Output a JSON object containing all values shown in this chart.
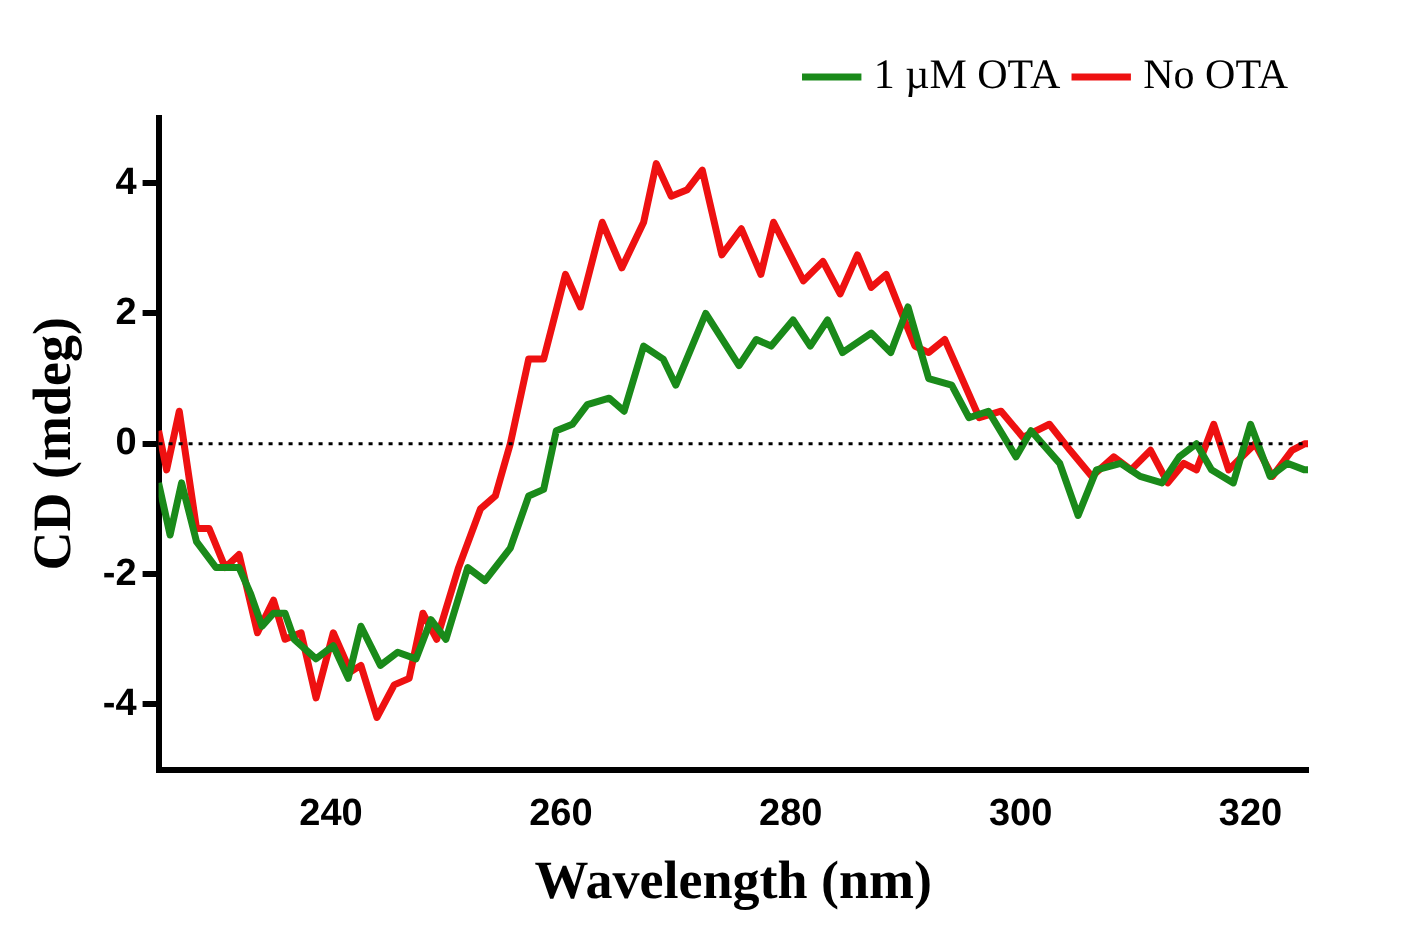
{
  "chart_data": {
    "type": "line",
    "xlabel": "Wavelength (nm)",
    "ylabel": "CD (mdeg)",
    "xlim": [
      225,
      325
    ],
    "xticks": [
      240,
      260,
      280,
      300,
      320
    ],
    "ylim": [
      -5,
      5
    ],
    "yticks": [
      -4,
      -2,
      0,
      2,
      4
    ],
    "grid": false,
    "legend": "top right",
    "marker": "none",
    "line_style": "solid",
    "ref_lines": [
      {
        "axis": "y",
        "value": 0,
        "line_style": "dotted",
        "color": "#000000"
      }
    ],
    "series": [
      {
        "name": "1 µM OTA",
        "color": "#1a8a1a",
        "x": [
          225,
          226,
          227,
          228.3,
          230,
          232,
          233,
          234,
          235,
          236,
          236.8,
          238.7,
          240.2,
          241.5,
          242.6,
          244.3,
          245.8,
          247.4,
          248.7,
          250,
          251.9,
          253.4,
          255.6,
          257.2,
          258.5,
          259.6,
          261,
          262.3,
          264.2,
          265.5,
          267.2,
          268.9,
          270,
          272.6,
          275.5,
          277,
          278.3,
          280.2,
          281.7,
          283.2,
          284.5,
          287,
          288.7,
          290.2,
          292,
          294,
          295.5,
          297.2,
          299.6,
          300.9,
          303.4,
          305,
          306.6,
          308.7,
          310.4,
          312.3,
          313.8,
          315.3,
          316.6,
          318.5,
          320,
          321.7,
          323.2,
          324.7,
          325
        ],
        "values": [
          -0.6,
          -1.4,
          -0.6,
          -1.5,
          -1.9,
          -1.9,
          -2.3,
          -2.8,
          -2.6,
          -2.6,
          -3,
          -3.3,
          -3.1,
          -3.6,
          -2.8,
          -3.4,
          -3.2,
          -3.3,
          -2.7,
          -3,
          -1.9,
          -2.1,
          -1.6,
          -0.8,
          -0.7,
          0.2,
          0.3,
          0.6,
          0.7,
          0.5,
          1.5,
          1.3,
          0.9,
          2,
          1.2,
          1.6,
          1.5,
          1.9,
          1.5,
          1.9,
          1.4,
          1.7,
          1.4,
          2.1,
          1,
          0.9,
          0.4,
          0.5,
          -0.2,
          0.2,
          -0.3,
          -1.1,
          -0.4,
          -0.3,
          -0.5,
          -0.6,
          -0.2,
          0,
          -0.4,
          -0.6,
          0.3,
          -0.5,
          -0.3,
          -0.4,
          -0.4
        ]
      },
      {
        "name": "No OTA",
        "color": "#ee1111",
        "x": [
          225,
          225.7,
          226.8,
          228.3,
          229.4,
          230.8,
          232,
          233.6,
          235,
          236,
          237.4,
          238.7,
          240.2,
          241.7,
          242.6,
          244,
          245.5,
          246.8,
          248,
          249.2,
          251.1,
          253,
          254.3,
          255.6,
          257.2,
          258.5,
          260.4,
          261.7,
          263.6,
          265.3,
          267.2,
          268.3,
          269.6,
          271,
          272.3,
          274,
          275.7,
          277.4,
          278.5,
          281.1,
          282.8,
          284.3,
          285.8,
          287,
          288.3,
          289.2,
          290.8,
          292,
          293.4,
          294.9,
          296.4,
          298.3,
          300.2,
          302.5,
          304.3,
          306.2,
          308.1,
          309.6,
          311.3,
          312.8,
          314.2,
          315.3,
          316.8,
          318.1,
          320.4,
          321.9,
          323.6,
          324.7,
          325
        ],
        "values": [
          0.2,
          -0.4,
          0.5,
          -1.3,
          -1.3,
          -1.9,
          -1.7,
          -2.9,
          -2.4,
          -3,
          -2.9,
          -3.9,
          -2.9,
          -3.5,
          -3.4,
          -4.2,
          -3.7,
          -3.6,
          -2.6,
          -3,
          -1.9,
          -1,
          -0.8,
          0,
          1.3,
          1.3,
          2.6,
          2.1,
          3.4,
          2.7,
          3.4,
          4.3,
          3.8,
          3.9,
          4.2,
          2.9,
          3.3,
          2.6,
          3.4,
          2.5,
          2.8,
          2.3,
          2.9,
          2.4,
          2.6,
          2.2,
          1.5,
          1.4,
          1.6,
          1,
          0.4,
          0.5,
          0.1,
          0.3,
          -0.1,
          -0.5,
          -0.2,
          -0.4,
          -0.1,
          -0.6,
          -0.3,
          -0.4,
          0.3,
          -0.4,
          0,
          -0.5,
          -0.1,
          0,
          0
        ]
      }
    ]
  }
}
